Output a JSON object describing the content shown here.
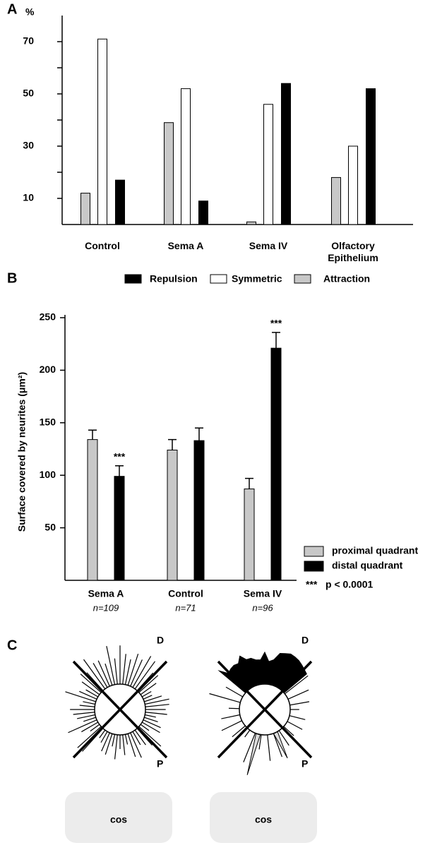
{
  "panel_labels": [
    "A",
    "B",
    "C"
  ],
  "chart_data": [
    {
      "type": "bar",
      "y_axis_label": "%",
      "categories": [
        "Control",
        "Sema A",
        "Sema IV",
        "Olfactory Epithelium"
      ],
      "series": [
        {
          "name": "Attraction",
          "color": "#c8c8c8",
          "values": [
            12,
            39,
            1,
            18
          ]
        },
        {
          "name": "Symmetric",
          "color": "#ffffff",
          "values": [
            71,
            52,
            46,
            30
          ]
        },
        {
          "name": "Repulsion",
          "color": "#000000",
          "values": [
            17,
            9,
            54,
            52
          ]
        }
      ],
      "ylim": [
        0,
        80
      ],
      "yticks": [
        10,
        30,
        50,
        70
      ],
      "yminor_ticks": [
        20,
        40,
        60
      ],
      "grid": false
    },
    {
      "type": "bar",
      "y_axis_label": "Surface covered by neurites (μm²)",
      "categories": [
        "Sema A",
        "Control",
        "Sema IV"
      ],
      "category_notes": [
        "n=109",
        "n=71",
        "n=96"
      ],
      "series": [
        {
          "name": "proximal quadrant",
          "color": "#c8c8c8",
          "values": [
            134,
            124,
            87
          ],
          "errors": [
            9,
            10,
            10
          ],
          "significance": [
            null,
            null,
            null
          ]
        },
        {
          "name": "distal quadrant",
          "color": "#000000",
          "values": [
            99,
            133,
            221
          ],
          "errors": [
            10,
            12,
            15
          ],
          "significance": [
            "***",
            null,
            "***"
          ]
        }
      ],
      "significance_note": {
        "marker": "***",
        "text": "p < 0.0001"
      },
      "ylim": [
        0,
        250
      ],
      "yticks": [
        50,
        100,
        150,
        200,
        250
      ],
      "grid": false
    }
  ],
  "diagrams": [
    {
      "distal_label": "D",
      "proximal_label": "P",
      "box_label": "cos"
    },
    {
      "distal_label": "D",
      "proximal_label": "P",
      "box_label": "cos"
    }
  ]
}
